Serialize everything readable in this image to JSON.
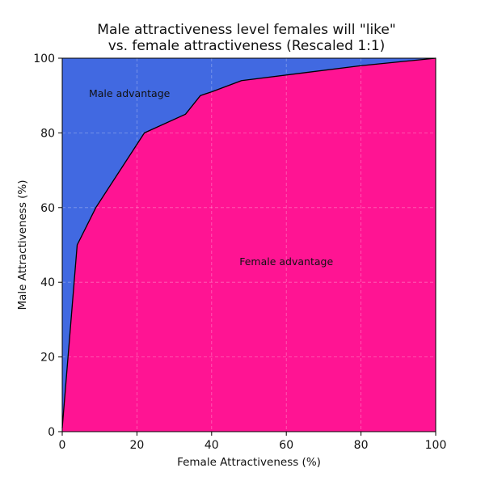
{
  "chart_data": {
    "type": "area",
    "title": [
      "Male attractiveness level females will \"like\"",
      "vs. female attractiveness (Rescaled 1:1)"
    ],
    "xlabel": "Female Attractiveness (%)",
    "ylabel": "Male Attractiveness (%)",
    "xlim": [
      0,
      100
    ],
    "ylim": [
      0,
      100
    ],
    "xticks": [
      0,
      20,
      40,
      60,
      80,
      100
    ],
    "yticks": [
      0,
      20,
      40,
      60,
      80,
      100
    ],
    "grid": true,
    "x": [
      0,
      4,
      9,
      22,
      33,
      37,
      40,
      48,
      80,
      100
    ],
    "y": [
      1,
      50,
      60,
      80,
      85,
      90,
      91,
      94,
      98,
      100
    ],
    "colors": {
      "above": "#4169E1",
      "below": "#FF1493",
      "line": "#000000"
    },
    "annotations": [
      {
        "text": "Male advantage",
        "x": 18,
        "y": 90.5
      },
      {
        "text": "Female advantage",
        "x": 60,
        "y": 45.5
      }
    ]
  }
}
